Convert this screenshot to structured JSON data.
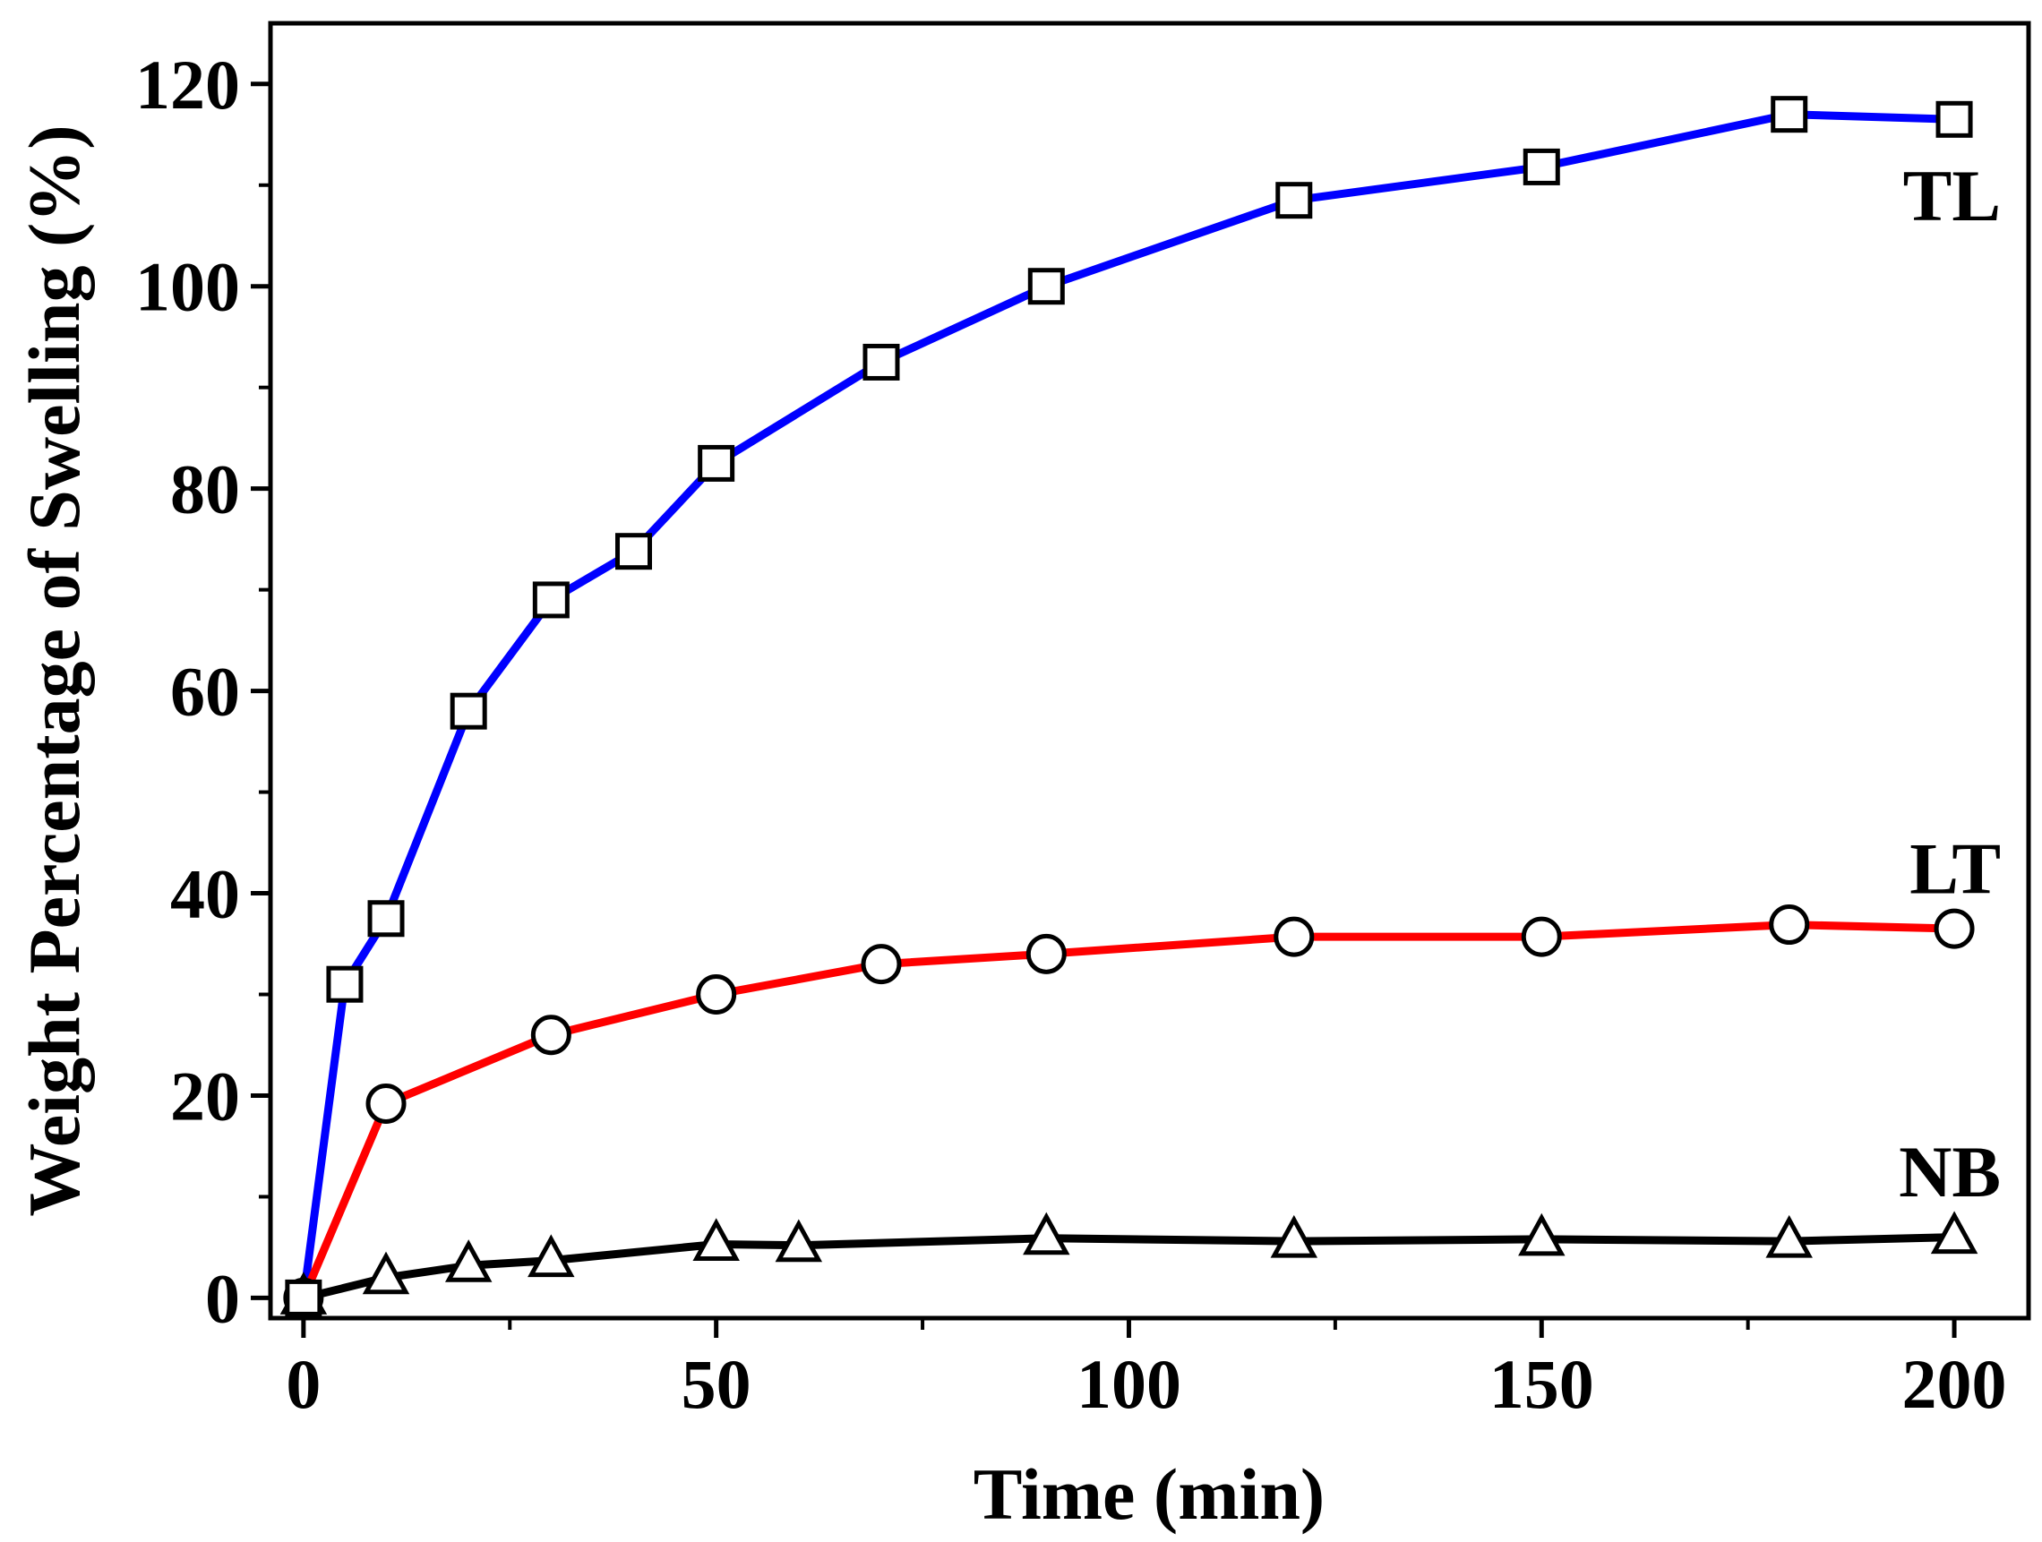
{
  "chart_data": {
    "type": "line",
    "title": "",
    "xlabel": "Time (min)",
    "ylabel": "Weight Percentage of Swelling (%)",
    "xlim": [
      -4,
      209
    ],
    "ylim": [
      -2,
      126
    ],
    "xticks": [
      0,
      50,
      100,
      150,
      200
    ],
    "xticks_minor": [
      25,
      75,
      125,
      175
    ],
    "xtick_labels": [
      "0",
      "50",
      "100",
      "150",
      "200"
    ],
    "yticks": [
      0,
      20,
      40,
      60,
      80,
      100,
      120
    ],
    "yticks_minor": [
      10,
      30,
      50,
      70,
      90,
      110
    ],
    "ytick_labels": [
      "0",
      "20",
      "40",
      "60",
      "80",
      "100",
      "120"
    ],
    "grid": false,
    "legend": "none (series labelled inline near right end)",
    "series": [
      {
        "name": "TL",
        "color": "#0000ff",
        "marker": "square",
        "x": [
          0,
          5,
          10,
          20,
          30,
          40,
          50,
          70,
          90,
          120,
          150,
          180,
          200
        ],
        "y": [
          0,
          31,
          37.5,
          58,
          69,
          73.8,
          82.5,
          92.5,
          100,
          108.5,
          111.8,
          117,
          116.5
        ],
        "label_anchor": [
          200,
          109
        ]
      },
      {
        "name": "LT",
        "color": "#ff0000",
        "marker": "circle",
        "x": [
          0,
          10,
          30,
          50,
          70,
          90,
          120,
          150,
          180,
          200
        ],
        "y": [
          0,
          19.2,
          26,
          30,
          33,
          34,
          35.7,
          35.7,
          36.9,
          36.5
        ],
        "label_anchor": [
          200,
          42.5
        ]
      },
      {
        "name": "NB",
        "color": "#000000",
        "marker": "triangle",
        "x": [
          0,
          10,
          20,
          30,
          50,
          60,
          90,
          120,
          150,
          180,
          200
        ],
        "y": [
          0,
          2,
          3.2,
          3.7,
          5.3,
          5.2,
          5.9,
          5.6,
          5.8,
          5.6,
          6
        ],
        "label_anchor": [
          200,
          12.5
        ]
      }
    ]
  }
}
